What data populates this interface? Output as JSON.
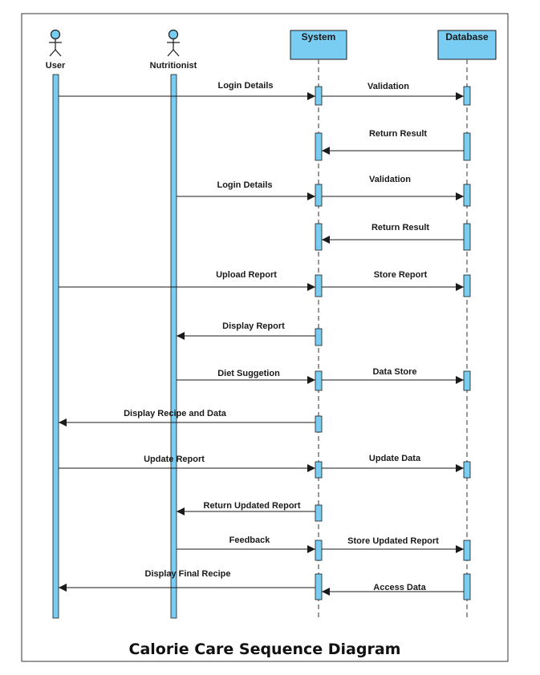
{
  "diagram": {
    "title": "Calorie Care Sequence Diagram",
    "colors": {
      "fill": "#79CDF2",
      "stroke": "#1a1a1a",
      "frame": "#333333"
    },
    "actors": [
      {
        "id": "user",
        "name": "User",
        "icon": "stick-figure-icon"
      },
      {
        "id": "nutritionist",
        "name": "Nutritionist",
        "icon": "stick-figure-icon"
      }
    ],
    "objects": [
      {
        "id": "system",
        "name": "System"
      },
      {
        "id": "database",
        "name": "Database"
      }
    ],
    "messages": [
      {
        "from": "user",
        "to": "system",
        "label": "Login Details"
      },
      {
        "from": "system",
        "to": "database",
        "label": "Validation"
      },
      {
        "from": "database",
        "to": "system",
        "label": "Return Result"
      },
      {
        "from": "nutritionist",
        "to": "system",
        "label": "Login Details"
      },
      {
        "from": "system",
        "to": "database",
        "label": "Validation"
      },
      {
        "from": "database",
        "to": "system",
        "label": "Return Result"
      },
      {
        "from": "user",
        "to": "system",
        "label": "Upload Report"
      },
      {
        "from": "system",
        "to": "database",
        "label": "Store Report"
      },
      {
        "from": "system",
        "to": "nutritionist",
        "label": "Display Report"
      },
      {
        "from": "nutritionist",
        "to": "system",
        "label": "Diet Suggetion"
      },
      {
        "from": "system",
        "to": "database",
        "label": "Data Store"
      },
      {
        "from": "system",
        "to": "user",
        "label": "Display Recipe and Data"
      },
      {
        "from": "user",
        "to": "system",
        "label": "Update Report"
      },
      {
        "from": "system",
        "to": "database",
        "label": "Update Data"
      },
      {
        "from": "system",
        "to": "nutritionist",
        "label": "Return Updated Report"
      },
      {
        "from": "nutritionist",
        "to": "system",
        "label": "Feedback"
      },
      {
        "from": "system",
        "to": "database",
        "label": "Store Updated Report"
      },
      {
        "from": "system",
        "to": "user",
        "label": "Display Final Recipe"
      },
      {
        "from": "database",
        "to": "system",
        "label": "Access Data"
      }
    ]
  }
}
